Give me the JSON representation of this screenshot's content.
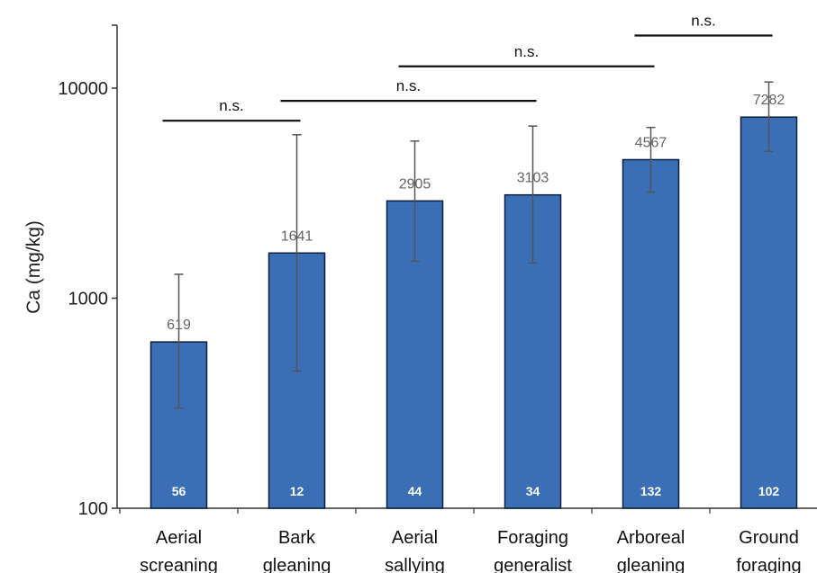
{
  "chart_data": {
    "type": "bar",
    "ylabel": "Ca (mg/kg)",
    "yscale": "log",
    "ylim": [
      100,
      20000
    ],
    "yticks": [
      {
        "value": 100,
        "label": "100"
      },
      {
        "value": 1000,
        "label": "1000"
      },
      {
        "value": 10000,
        "label": "10000"
      }
    ],
    "categories": [
      [
        "Aerial",
        "screaning"
      ],
      [
        "Bark",
        "gleaning"
      ],
      [
        "Aerial",
        "sallying"
      ],
      [
        "Foraging",
        "generalist"
      ],
      [
        "Arboreal",
        "gleaning"
      ],
      [
        "Ground",
        "foraging"
      ]
    ],
    "values": [
      619,
      1641,
      2905,
      3103,
      4567,
      7282
    ],
    "value_labels": [
      "619",
      "1641",
      "2905",
      "3103",
      "4567",
      "7282"
    ],
    "error_low": [
      300,
      450,
      1500,
      1470,
      3200,
      5000
    ],
    "error_high": [
      1300,
      6000,
      5600,
      6600,
      6500,
      10700
    ],
    "sample_sizes": [
      "56",
      "12",
      "44",
      "34",
      "132",
      "102"
    ],
    "significance": [
      {
        "from": 0,
        "to": 1,
        "level": 7000,
        "label": "n.s."
      },
      {
        "from": 1,
        "to": 3,
        "level": 8700,
        "label": "n.s."
      },
      {
        "from": 2,
        "to": 4,
        "level": 12700,
        "label": "n.s."
      },
      {
        "from": 4,
        "to": 5,
        "level": 17800,
        "label": "n.s."
      }
    ],
    "colors": {
      "bar": "#3a6fb5",
      "bar_edge": "#0d1f3c",
      "errorbar": "#555555"
    },
    "grid": false
  }
}
